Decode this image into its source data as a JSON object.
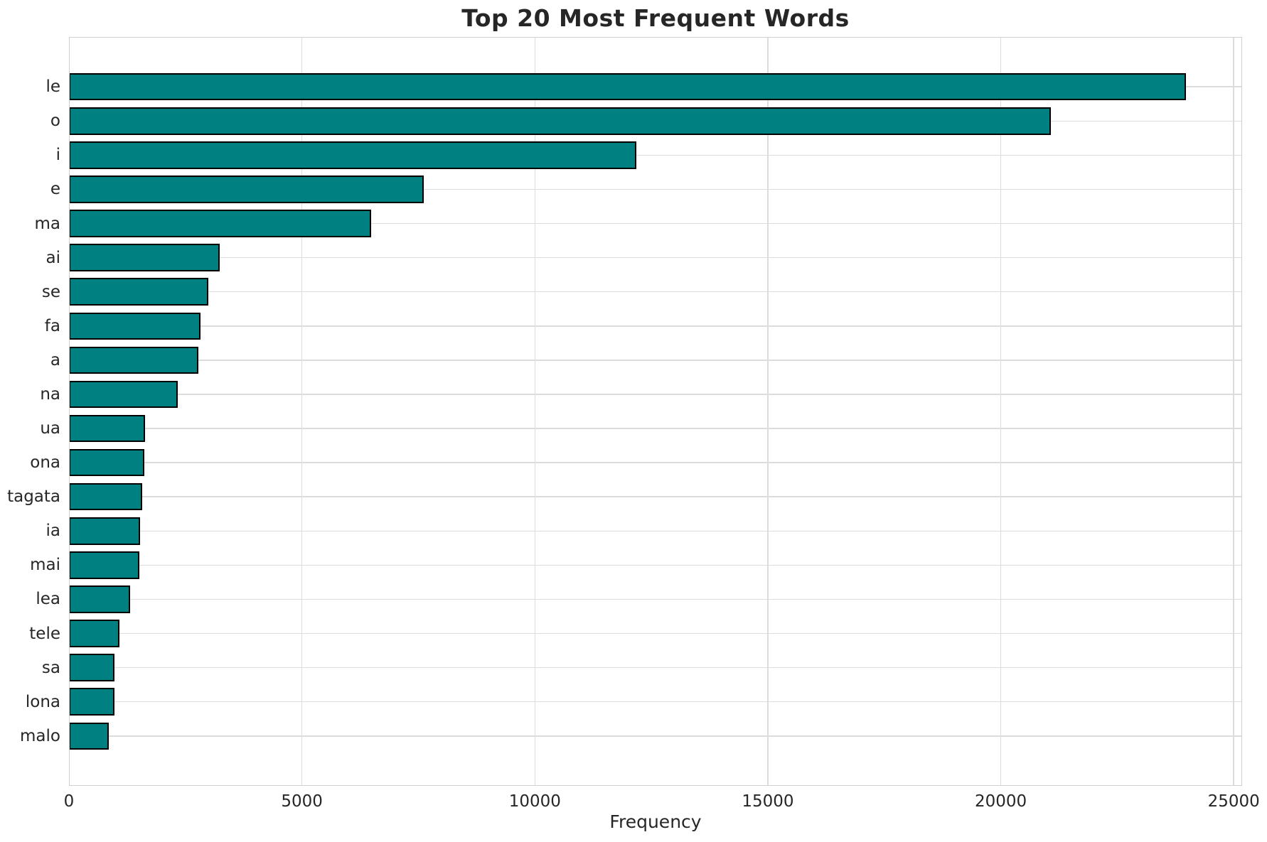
{
  "figure": {
    "background_color": "#ffffff"
  },
  "chart_data": {
    "type": "bar",
    "orientation": "horizontal",
    "title": "Top 20 Most Frequent Words",
    "xlabel": "Frequency",
    "ylabel": "",
    "categories": [
      "le",
      "o",
      "i",
      "e",
      "ma",
      "ai",
      "se",
      "fa",
      "a",
      "na",
      "ua",
      "ona",
      "tagata",
      "ia",
      "mai",
      "lea",
      "tele",
      "sa",
      "lona",
      "malo"
    ],
    "values": [
      23980,
      21080,
      12180,
      7620,
      6480,
      3230,
      2990,
      2820,
      2780,
      2340,
      1640,
      1610,
      1570,
      1530,
      1510,
      1310,
      1080,
      980,
      980,
      850
    ],
    "xticks": [
      0,
      5000,
      10000,
      15000,
      20000,
      25000
    ],
    "xlim": [
      0,
      25180
    ],
    "grid": true,
    "legend": false,
    "bar_color": "#008080",
    "bar_edge_color": "#000000",
    "grid_color": "#dcdcdc",
    "spine_color": "#d0d0d0",
    "text_color": "#262626"
  }
}
